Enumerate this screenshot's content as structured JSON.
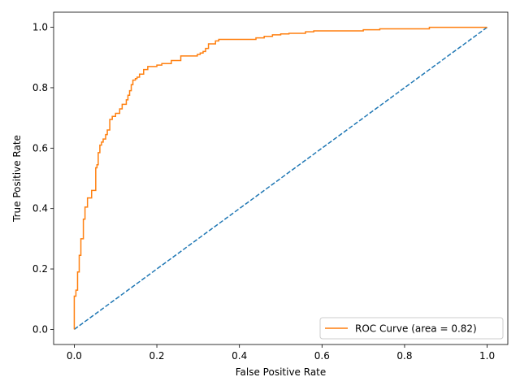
{
  "chart_data": {
    "type": "line",
    "title": "",
    "xlabel": "False Positive Rate",
    "ylabel": "True Positive Rate",
    "xlim": [
      -0.05,
      1.05
    ],
    "ylim": [
      -0.05,
      1.05
    ],
    "xticks": [
      "0.0",
      "0.2",
      "0.4",
      "0.6",
      "0.8",
      "1.0"
    ],
    "yticks": [
      "0.0",
      "0.2",
      "0.4",
      "0.6",
      "0.8",
      "1.0"
    ],
    "grid": false,
    "legend_position": "lower-right",
    "series": [
      {
        "name": "ROC Curve (area = 0.82)",
        "color": "#ff7f0e",
        "style": "step",
        "x": [
          0.0,
          0.0,
          0.004,
          0.004,
          0.008,
          0.008,
          0.012,
          0.012,
          0.016,
          0.016,
          0.022,
          0.022,
          0.026,
          0.026,
          0.032,
          0.032,
          0.042,
          0.042,
          0.052,
          0.052,
          0.055,
          0.055,
          0.058,
          0.058,
          0.062,
          0.062,
          0.066,
          0.066,
          0.07,
          0.07,
          0.076,
          0.076,
          0.08,
          0.08,
          0.086,
          0.086,
          0.092,
          0.092,
          0.1,
          0.1,
          0.11,
          0.11,
          0.116,
          0.116,
          0.126,
          0.126,
          0.13,
          0.13,
          0.134,
          0.134,
          0.138,
          0.138,
          0.142,
          0.142,
          0.148,
          0.148,
          0.152,
          0.152,
          0.158,
          0.158,
          0.168,
          0.168,
          0.178,
          0.178,
          0.2,
          0.2,
          0.212,
          0.212,
          0.235,
          0.235,
          0.258,
          0.258,
          0.298,
          0.298,
          0.305,
          0.305,
          0.312,
          0.312,
          0.318,
          0.318,
          0.325,
          0.325,
          0.342,
          0.342,
          0.35,
          0.35,
          0.44,
          0.44,
          0.46,
          0.46,
          0.48,
          0.48,
          0.5,
          0.5,
          0.52,
          0.52,
          0.56,
          0.56,
          0.58,
          0.58,
          0.7,
          0.7,
          0.74,
          0.74,
          0.86,
          0.86,
          1.0
        ],
        "y": [
          0.0,
          0.11,
          0.11,
          0.13,
          0.13,
          0.19,
          0.19,
          0.245,
          0.245,
          0.3,
          0.3,
          0.365,
          0.365,
          0.405,
          0.405,
          0.435,
          0.435,
          0.46,
          0.46,
          0.535,
          0.535,
          0.545,
          0.545,
          0.585,
          0.585,
          0.61,
          0.61,
          0.62,
          0.62,
          0.63,
          0.63,
          0.645,
          0.645,
          0.66,
          0.66,
          0.695,
          0.695,
          0.705,
          0.705,
          0.715,
          0.715,
          0.73,
          0.73,
          0.745,
          0.745,
          0.76,
          0.76,
          0.775,
          0.775,
          0.79,
          0.79,
          0.81,
          0.81,
          0.825,
          0.825,
          0.83,
          0.83,
          0.835,
          0.835,
          0.845,
          0.845,
          0.86,
          0.86,
          0.87,
          0.87,
          0.875,
          0.875,
          0.88,
          0.88,
          0.89,
          0.89,
          0.905,
          0.905,
          0.91,
          0.91,
          0.915,
          0.915,
          0.92,
          0.92,
          0.93,
          0.93,
          0.945,
          0.945,
          0.955,
          0.955,
          0.96,
          0.96,
          0.965,
          0.965,
          0.97,
          0.97,
          0.975,
          0.975,
          0.978,
          0.978,
          0.98,
          0.98,
          0.985,
          0.985,
          0.988,
          0.988,
          0.992,
          0.992,
          0.995,
          0.995,
          1.0,
          1.0
        ]
      },
      {
        "color": "#1f77b4",
        "style": "dashed",
        "x": [
          0.0,
          1.0
        ],
        "y": [
          0.0,
          1.0
        ]
      }
    ]
  }
}
